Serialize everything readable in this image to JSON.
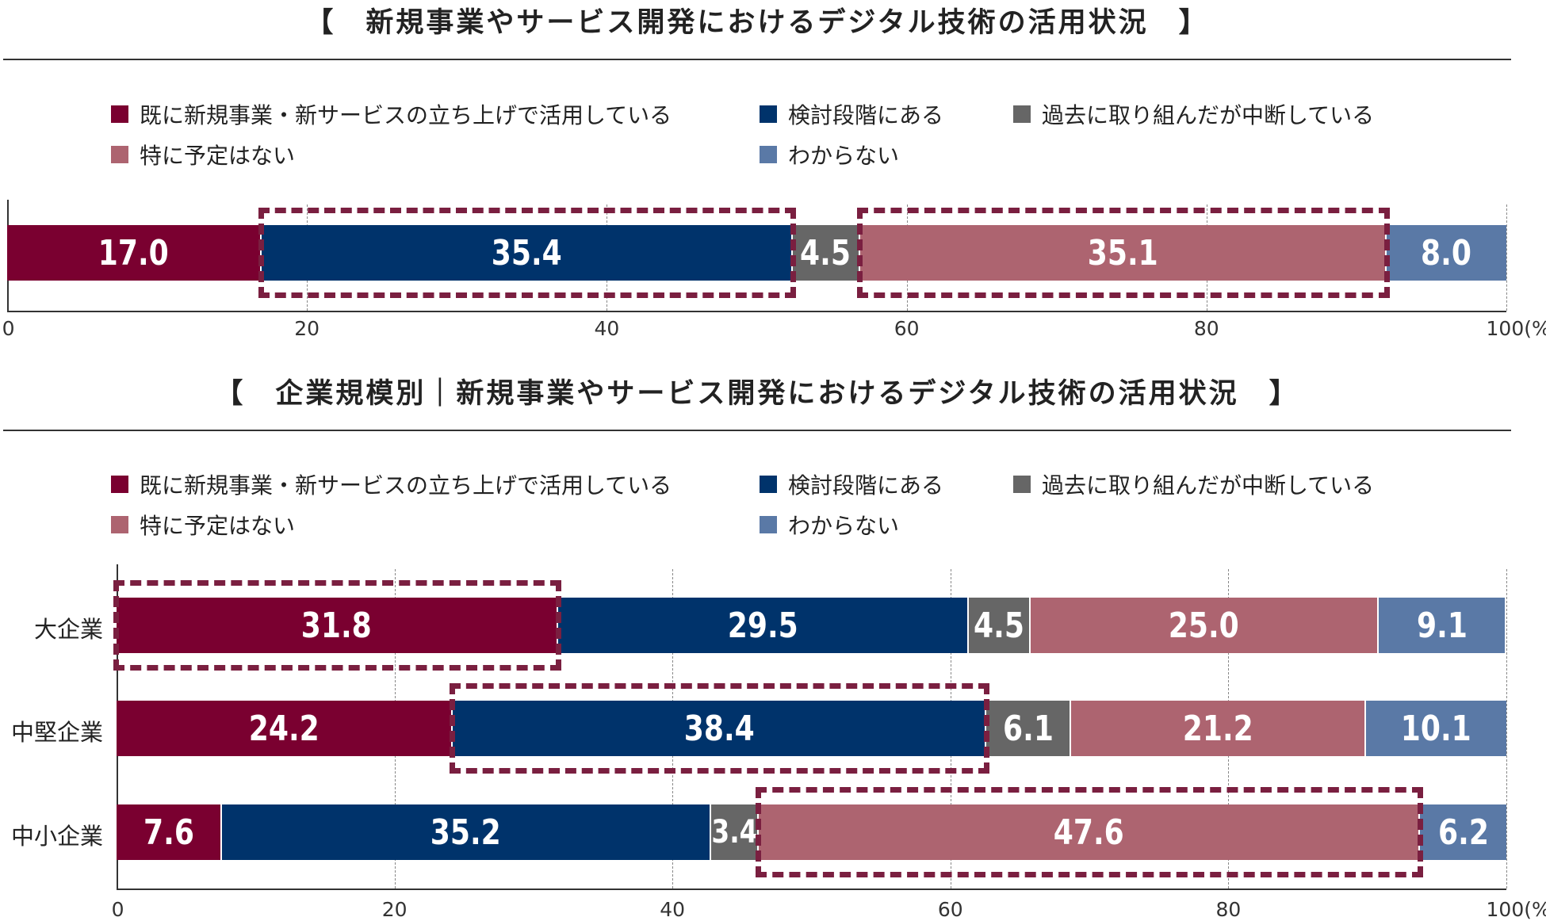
{
  "colors": {
    "series": [
      "#7a0030",
      "#00336b",
      "#666666",
      "#ad6470",
      "#5a79a6"
    ],
    "highlight": "#7a1f40"
  },
  "chart_data": [
    {
      "type": "bar",
      "orientation": "horizontal-stacked",
      "title": "【　新規事業やサービス開発におけるデジタル技術の活用状況　】",
      "legend": [
        "既に新規事業・新サービスの立ち上げで活用している",
        "検討段階にある",
        "過去に取り組んだが中断している",
        "特に予定はない",
        "わからない"
      ],
      "legend_placement": "top",
      "categories": [
        ""
      ],
      "series": [
        {
          "name": "既に新規事業・新サービスの立ち上げで活用している",
          "values": [
            17.0
          ]
        },
        {
          "name": "検討段階にある",
          "values": [
            35.4
          ]
        },
        {
          "name": "過去に取り組んだが中断している",
          "values": [
            4.5
          ]
        },
        {
          "name": "特に予定はない",
          "values": [
            35.1
          ]
        },
        {
          "name": "わからない",
          "values": [
            8.0
          ]
        }
      ],
      "highlighted": [
        [
          1,
          3
        ]
      ],
      "xlim": [
        0,
        100
      ],
      "xticks": [
        "0",
        "20",
        "40",
        "60",
        "80",
        "100(%)"
      ],
      "grid": true
    },
    {
      "type": "bar",
      "orientation": "horizontal-stacked",
      "title": "【　企業規模別｜新規事業やサービス開発におけるデジタル技術の活用状況　】",
      "legend": [
        "既に新規事業・新サービスの立ち上げで活用している",
        "検討段階にある",
        "過去に取り組んだが中断している",
        "特に予定はない",
        "わからない"
      ],
      "legend_placement": "top",
      "categories": [
        "大企業",
        "中堅企業",
        "中小企業"
      ],
      "series": [
        {
          "name": "既に新規事業・新サービスの立ち上げで活用している",
          "values": [
            31.8,
            24.2,
            7.6
          ]
        },
        {
          "name": "検討段階にある",
          "values": [
            29.5,
            38.4,
            35.2
          ]
        },
        {
          "name": "過去に取り組んだが中断している",
          "values": [
            4.5,
            6.1,
            3.4
          ]
        },
        {
          "name": "特に予定はない",
          "values": [
            25.0,
            21.2,
            47.6
          ]
        },
        {
          "name": "わからない",
          "values": [
            9.1,
            10.1,
            6.2
          ]
        }
      ],
      "highlighted": [
        [
          0
        ],
        [
          1
        ],
        [
          3
        ]
      ],
      "xlim": [
        0,
        100
      ],
      "xticks": [
        "0",
        "20",
        "40",
        "60",
        "80",
        "100(%)"
      ],
      "grid": true
    }
  ]
}
